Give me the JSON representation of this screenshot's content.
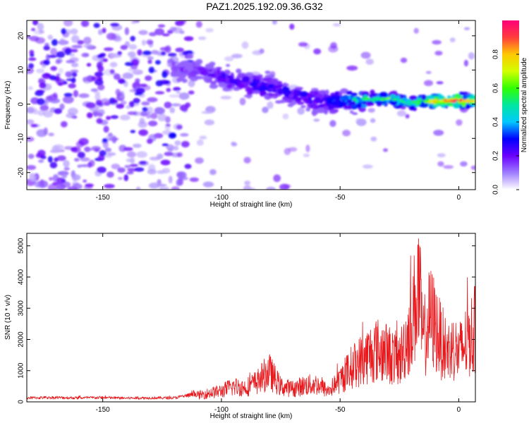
{
  "title": "PAZ1.2025.192.09.36.G32",
  "chart_data": [
    {
      "type": "heatmap",
      "xlabel": "Height of straight line (km)",
      "ylabel": "Frequency (Hz)",
      "xlim": [
        -182,
        7
      ],
      "ylim": [
        -25,
        24.5
      ],
      "xticks": [
        -150,
        -100,
        -50,
        0
      ],
      "yticks": [
        -20,
        -10,
        0,
        10,
        20
      ],
      "colorbar": {
        "label": "Normalized spectral amplitude",
        "range": [
          0,
          1
        ],
        "ticks": [
          0.0,
          0.2,
          0.4,
          0.6,
          0.8
        ],
        "colors": [
          "#ffffff",
          "#9e7dff",
          "#6a00ff",
          "#0000ff",
          "#00c8ff",
          "#00e6a0",
          "#32ff00",
          "#d2ff00",
          "#ffc800",
          "#ff3c3c",
          "#ff0078"
        ]
      },
      "ridge": {
        "x": [
          -182,
          -150,
          -120,
          -110,
          -100,
          -90,
          -80,
          -70,
          -60,
          -50,
          -40,
          -30,
          -20,
          -10,
          0,
          7
        ],
        "y": [
          12,
          11,
          10,
          10,
          8,
          6,
          5,
          3,
          1,
          1,
          1.5,
          1.5,
          0.5,
          1,
          1,
          1
        ],
        "amplitude": [
          0.1,
          0.12,
          0.15,
          0.2,
          0.25,
          0.3,
          0.3,
          0.3,
          0.3,
          0.35,
          0.55,
          0.6,
          0.5,
          0.8,
          0.9,
          0.7
        ]
      }
    },
    {
      "type": "line",
      "xlabel": "Height of straight line (km)",
      "ylabel": "SNR (10 * v/v)",
      "xlim": [
        -182,
        7
      ],
      "ylim": [
        0,
        5400
      ],
      "xticks": [
        -150,
        -100,
        -50,
        0
      ],
      "yticks": [
        0,
        1000,
        2000,
        3000,
        4000,
        5000
      ],
      "color": "#e8181c",
      "x": [
        -182,
        -170,
        -160,
        -150,
        -140,
        -130,
        -120,
        -110,
        -100,
        -95,
        -90,
        -85,
        -80,
        -75,
        -70,
        -65,
        -60,
        -55,
        -50,
        -45,
        -40,
        -35,
        -30,
        -25,
        -20,
        -17,
        -15,
        -12,
        -10,
        -8,
        -5,
        -2,
        0,
        3,
        7
      ],
      "y": [
        150,
        160,
        150,
        160,
        140,
        150,
        150,
        300,
        500,
        700,
        650,
        900,
        1400,
        700,
        600,
        750,
        800,
        500,
        1000,
        1600,
        2000,
        2400,
        2200,
        1900,
        3500,
        5300,
        2800,
        3900,
        3500,
        2900,
        2300,
        2500,
        2200,
        2700,
        3300
      ]
    }
  ]
}
